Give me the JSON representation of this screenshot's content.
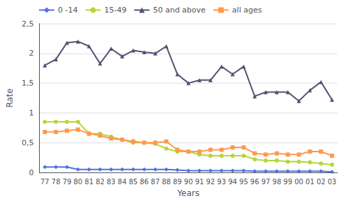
{
  "chart_data": {
    "type": "line",
    "categories": [
      "77",
      "78",
      "79",
      "80",
      "81",
      "82",
      "83",
      "84",
      "85",
      "86",
      "87",
      "88",
      "89",
      "90",
      "91",
      "92",
      "93",
      "94",
      "95",
      "96",
      "97",
      "98",
      "99",
      "00",
      "01",
      "02",
      "03"
    ],
    "series": [
      {
        "name": "0 -14",
        "marker": "diamond",
        "values": [
          0.09,
          0.09,
          0.09,
          0.05,
          0.05,
          0.05,
          0.05,
          0.05,
          0.05,
          0.05,
          0.05,
          0.05,
          0.04,
          0.03,
          0.03,
          0.03,
          0.03,
          0.03,
          0.03,
          0.02,
          0.02,
          0.02,
          0.02,
          0.02,
          0.02,
          0.02,
          0.01
        ]
      },
      {
        "name": "15-49",
        "marker": "circle",
        "values": [
          0.85,
          0.85,
          0.85,
          0.85,
          0.65,
          0.65,
          0.6,
          0.55,
          0.5,
          0.5,
          0.48,
          0.4,
          0.35,
          0.35,
          0.3,
          0.28,
          0.28,
          0.28,
          0.28,
          0.22,
          0.2,
          0.2,
          0.18,
          0.18,
          0.17,
          0.15,
          0.13
        ]
      },
      {
        "name": "50 and above",
        "marker": "triangle",
        "values": [
          1.8,
          1.9,
          2.18,
          2.2,
          2.12,
          1.83,
          2.08,
          1.95,
          2.05,
          2.02,
          2.0,
          2.12,
          1.65,
          1.5,
          1.55,
          1.55,
          1.78,
          1.65,
          1.78,
          1.28,
          1.35,
          1.35,
          1.35,
          1.2,
          1.38,
          1.52,
          1.22
        ]
      },
      {
        "name": "all ages",
        "marker": "square",
        "values": [
          0.68,
          0.68,
          0.7,
          0.72,
          0.65,
          0.62,
          0.57,
          0.55,
          0.52,
          0.5,
          0.5,
          0.52,
          0.38,
          0.35,
          0.35,
          0.38,
          0.38,
          0.42,
          0.42,
          0.32,
          0.3,
          0.32,
          0.3,
          0.3,
          0.35,
          0.35,
          0.28
        ]
      }
    ],
    "xlabel": "Years",
    "ylabel": "Rate",
    "ylim": [
      0,
      2.5
    ],
    "yticks": [
      0,
      {
        "value": 0.5,
        "label": "0,5"
      },
      1,
      {
        "value": 1.5,
        "label": "1,5"
      },
      2,
      {
        "value": 2.5,
        "label": "2,5"
      }
    ],
    "grid": true,
    "legend": "upper left"
  }
}
